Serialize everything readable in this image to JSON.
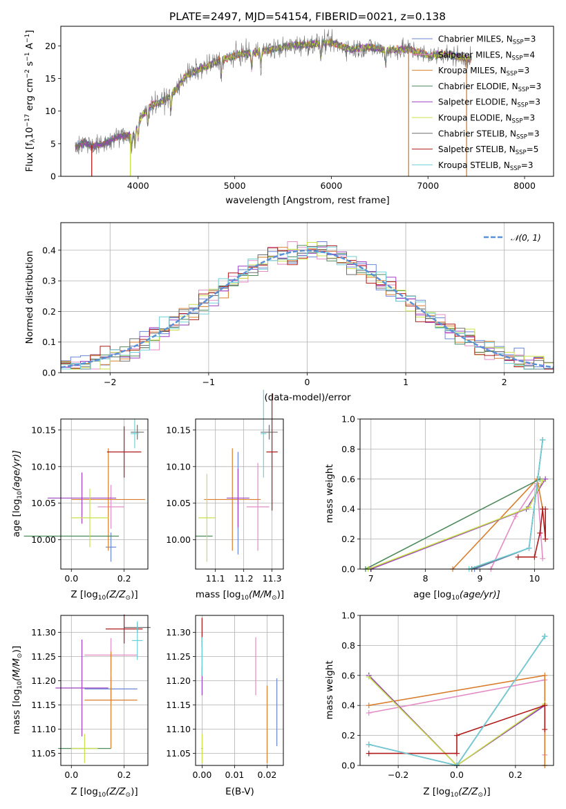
{
  "figure": {
    "title": "PLATE=2497, MJD=54154, FIBERID=0021, z=0.138"
  },
  "models": [
    {
      "label": "Chabrier MILES, N",
      "nssp": "3",
      "color": "#6a85d4"
    },
    {
      "label": "Salpeter MILES, N",
      "nssp": "4",
      "color": "#e38bc5"
    },
    {
      "label": "Kroupa MILES, N",
      "nssp": "3",
      "color": "#d97d2c"
    },
    {
      "label": "Chabrier ELODIE, N",
      "nssp": "3",
      "color": "#4e8a5c"
    },
    {
      "label": "Salpeter ELODIE, N",
      "nssp": "3",
      "color": "#9a3fc0"
    },
    {
      "label": "Kroupa ELODIE, N",
      "nssp": "3",
      "color": "#c9e04a"
    },
    {
      "label": "Chabrier STELIB, N",
      "nssp": "3",
      "color": "#6e6e6e"
    },
    {
      "label": "Salpeter STELIB, N",
      "nssp": "5",
      "color": "#b01a1a"
    },
    {
      "label": "Kroupa STELIB, N",
      "nssp": "3",
      "color": "#6fcfd6"
    }
  ],
  "chart_data": [
    {
      "type": "line",
      "xlabel": "wavelength [Angstrom, rest frame]",
      "ylabel": "Flux [f",
      "ylabel_rest": "10",
      "ylabel_exp": "−17",
      "ylabel_unit": " erg cm",
      "ylabel_exp2": "−2",
      "ylabel_s": " s",
      "ylabel_exp3": "−1",
      "ylabel_end": " A",
      "ylabel_exp4": "−1",
      "ylabel_close": "]",
      "xlim": [
        3200,
        8300
      ],
      "ylim": [
        0,
        23
      ],
      "xticks": [
        "4000",
        "5000",
        "6000",
        "7000",
        "8000"
      ],
      "xtick_values": [
        4000,
        5000,
        6000,
        7000,
        8000
      ],
      "yticks": [
        "0",
        "5",
        "10",
        "15",
        "20"
      ],
      "ytick_values": [
        0,
        5,
        10,
        15,
        20
      ],
      "legend_position": "right",
      "continuum": {
        "x": [
          3350,
          3450,
          3550,
          3650,
          3750,
          3850,
          3950,
          4050,
          4150,
          4250,
          4350,
          4500,
          4650,
          4800,
          5000,
          5200,
          5400,
          5600,
          5800,
          6000,
          6200,
          6400,
          6600,
          6800,
          7000,
          7200,
          7400
        ],
        "y": [
          4.5,
          5.2,
          4.6,
          5.0,
          5.8,
          6.2,
          6.5,
          9.5,
          11.0,
          11.5,
          12.5,
          15.5,
          16.5,
          17.5,
          18.5,
          19.0,
          19.5,
          20.0,
          20.3,
          20.5,
          19.5,
          19.8,
          19.3,
          19.5,
          18.5,
          18.7,
          18.0
        ]
      },
      "drops": [
        {
          "x": 3520,
          "name": "Salpeter STELIB"
        },
        {
          "x": 3920,
          "name": "Kroupa ELODIE"
        },
        {
          "x": 6800,
          "name": "Kroupa MILES"
        },
        {
          "x": 7400,
          "name": "Kroupa MILES"
        }
      ]
    },
    {
      "type": "step",
      "xlabel": "(data-model)/error",
      "ylabel": "Normed distribution",
      "xlim": [
        -2.5,
        2.5
      ],
      "ylim": [
        0,
        0.49
      ],
      "xticks": [
        "−2",
        "−1",
        "0",
        "1",
        "2"
      ],
      "xtick_values": [
        -2,
        -1,
        0,
        1,
        2
      ],
      "yticks": [
        "0.0",
        "0.1",
        "0.2",
        "0.3",
        "0.4"
      ],
      "ytick_values": [
        0,
        0.1,
        0.2,
        0.3,
        0.4
      ],
      "grid": true,
      "gauss_label": "𝒩(0, 1)",
      "gauss_color": "#5b8fd6",
      "legend_position": "top-right"
    },
    {
      "type": "errorbar",
      "xlabel": "Z [log",
      "xlabel_sub": "10",
      "xlabel_rest": "(Z/Z",
      "xlabel_sun": "⊙",
      "xlabel_end": ")]",
      "ylabel": "age  [log",
      "ylabel_sub": "10",
      "ylabel_rest": "(age/yr)]",
      "xlim": [
        -0.04,
        0.29
      ],
      "ylim": [
        9.96,
        10.165
      ],
      "xticks": [
        "0.0",
        "0.2"
      ],
      "xtick_values": [
        0,
        0.2
      ],
      "yticks": [
        "10.00",
        "10.05",
        "10.10",
        "10.15"
      ],
      "ytick_values": [
        10.0,
        10.05,
        10.1,
        10.15
      ],
      "points": [
        {
          "series": "Chabrier MILES",
          "x": 0.15,
          "y": 9.99,
          "xerr": 0.02,
          "yerr": 0.02
        },
        {
          "series": "Salpeter MILES",
          "x": 0.15,
          "y": 10.045,
          "xerr": 0.05,
          "yerr": 0.03
        },
        {
          "series": "Kroupa MILES",
          "x": 0.14,
          "y": 10.055,
          "xerr": 0.14,
          "yerr": 0.07
        },
        {
          "series": "Chabrier ELODIE",
          "x": 0.0,
          "y": 10.005,
          "xerr": 0.18,
          "yerr": 0.0
        },
        {
          "series": "Salpeter ELODIE",
          "x": 0.04,
          "y": 10.057,
          "xerr": 0.13,
          "yerr": 0.035
        },
        {
          "series": "Kroupa ELODIE",
          "x": 0.07,
          "y": 10.03,
          "xerr": 0.07,
          "yerr": 0.04
        },
        {
          "series": "Chabrier STELIB",
          "x": 0.25,
          "y": 10.147,
          "xerr": 0.025,
          "yerr": 0.01
        },
        {
          "series": "Salpeter STELIB",
          "x": 0.2,
          "y": 10.12,
          "xerr": 0.065,
          "yerr": 0.035
        },
        {
          "series": "Kroupa STELIB",
          "x": 0.24,
          "y": 10.145,
          "xerr": 0.015,
          "yerr": 0.02
        }
      ]
    },
    {
      "type": "errorbar",
      "xlabel": "mass [log",
      "xlabel_sub": "10",
      "xlabel_rest": "(M/M",
      "xlabel_sun": "⊙",
      "xlabel_end": ")]",
      "xlim": [
        11.03,
        11.34
      ],
      "ylim": [
        9.96,
        10.165
      ],
      "xticks": [
        "11.1",
        "11.2",
        "11.3"
      ],
      "xtick_values": [
        11.1,
        11.2,
        11.3
      ],
      "yticks": [
        "10.00",
        "10.05",
        "10.10",
        "10.15"
      ],
      "ytick_values": [
        10.0,
        10.05,
        10.1,
        10.15
      ],
      "points": [
        {
          "series": "Chabrier MILES",
          "x": 11.18,
          "y": 10.05,
          "xerr": 0.0,
          "yerr": 0.07
        },
        {
          "series": "Salpeter MILES",
          "x": 11.25,
          "y": 10.045,
          "xerr": 0.04,
          "yerr": 0.06
        },
        {
          "series": "Kroupa MILES",
          "x": 11.16,
          "y": 10.055,
          "xerr": 0.1,
          "yerr": 0.07
        },
        {
          "series": "Chabrier ELODIE",
          "x": 11.06,
          "y": 10.005,
          "xerr": 0.03,
          "yerr": 0.0
        },
        {
          "series": "Salpeter ELODIE",
          "x": 11.18,
          "y": 10.057,
          "xerr": 0.04,
          "yerr": 0.04
        },
        {
          "series": "Kroupa ELODIE",
          "x": 11.07,
          "y": 10.03,
          "xerr": 0.03,
          "yerr": 0.06
        },
        {
          "series": "Chabrier STELIB",
          "x": 11.29,
          "y": 10.147,
          "xerr": 0.03,
          "yerr": 0.01
        },
        {
          "series": "Salpeter STELIB",
          "x": 11.3,
          "y": 10.12,
          "xerr": 0.02,
          "yerr": 0.08
        },
        {
          "series": "Kroupa STELIB",
          "x": 11.27,
          "y": 10.145,
          "xerr": 0.01,
          "yerr": 0.06
        }
      ]
    },
    {
      "type": "line",
      "xlabel": "age  [log",
      "xlabel_sub": "10",
      "xlabel_rest": "(age/yr)]",
      "ylabel": "mass weight",
      "xlim": [
        6.8,
        10.35
      ],
      "ylim": [
        0,
        1.0
      ],
      "xticks": [
        "7",
        "8",
        "9",
        "10"
      ],
      "xtick_values": [
        7,
        8,
        9,
        10
      ],
      "yticks": [
        "0.0",
        "0.2",
        "0.4",
        "0.6",
        "0.8",
        "1.0"
      ],
      "ytick_values": [
        0,
        0.2,
        0.4,
        0.6,
        0.8,
        1.0
      ],
      "grid": true,
      "series": [
        {
          "name": "Chabrier MILES",
          "x": [
            8.9,
            9.9,
            10.15
          ],
          "y": [
            0.0,
            0.14,
            0.86
          ]
        },
        {
          "name": "Salpeter MILES",
          "x": [
            9.2,
            9.65,
            10.05,
            10.15
          ],
          "y": [
            0.0,
            0.35,
            0.57,
            0.07
          ]
        },
        {
          "name": "Kroupa MILES",
          "x": [
            8.5,
            10.05,
            10.15
          ],
          "y": [
            0.0,
            0.6,
            0.4
          ]
        },
        {
          "name": "Chabrier ELODIE",
          "x": [
            6.9,
            10.1
          ],
          "y": [
            0.0,
            0.6
          ]
        },
        {
          "name": "Salpeter ELODIE",
          "x": [
            7.0,
            9.85,
            10.2
          ],
          "y": [
            0.0,
            0.4,
            0.6
          ]
        },
        {
          "name": "Kroupa ELODIE",
          "x": [
            6.95,
            9.9,
            10.15
          ],
          "y": [
            0.0,
            0.41,
            0.59
          ]
        },
        {
          "name": "Chabrier STELIB",
          "x": [
            8.85,
            9.9,
            10.15
          ],
          "y": [
            0.0,
            0.14,
            0.86
          ]
        },
        {
          "name": "Salpeter STELIB",
          "x": [
            9.7,
            10.0,
            10.1,
            10.15,
            10.2,
            10.2
          ],
          "y": [
            0.08,
            0.08,
            0.24,
            0.4,
            0.2,
            0.4
          ]
        },
        {
          "name": "Kroupa STELIB",
          "x": [
            8.8,
            9.9,
            10.15
          ],
          "y": [
            0.0,
            0.14,
            0.86
          ]
        }
      ]
    },
    {
      "type": "errorbar",
      "xlabel": "Z [log",
      "xlabel_sub": "10",
      "xlabel_rest": "(Z/Z",
      "xlabel_sun": "⊙",
      "xlabel_end": ")]",
      "ylabel": "mass [log",
      "ylabel_sub": "10",
      "ylabel_rest": "(M/M",
      "ylabel_sun": "⊙",
      "ylabel_end": ")]",
      "xlim": [
        -0.04,
        0.29
      ],
      "ylim": [
        11.025,
        11.335
      ],
      "xticks": [
        "0.0",
        "0.2"
      ],
      "xtick_values": [
        0,
        0.2
      ],
      "yticks": [
        "11.05",
        "11.10",
        "11.15",
        "11.20",
        "11.25",
        "11.30"
      ],
      "ytick_values": [
        11.05,
        11.1,
        11.15,
        11.2,
        11.25,
        11.3
      ],
      "points": [
        {
          "series": "Chabrier MILES",
          "x": 0.15,
          "y": 11.183,
          "xerr": 0.1,
          "yerr": 0.025
        },
        {
          "series": "Salpeter MILES",
          "x": 0.15,
          "y": 11.253,
          "xerr": 0.1,
          "yerr": 0.035
        },
        {
          "series": "Kroupa MILES",
          "x": 0.15,
          "y": 11.16,
          "xerr": 0.1,
          "yerr": 0.1
        },
        {
          "series": "Chabrier ELODIE",
          "x": 0.05,
          "y": 11.06,
          "xerr": 0.1,
          "yerr": 0.0
        },
        {
          "series": "Salpeter ELODIE",
          "x": 0.04,
          "y": 11.185,
          "xerr": 0.1,
          "yerr": 0.1
        },
        {
          "series": "Kroupa ELODIE",
          "x": 0.05,
          "y": 11.06,
          "xerr": 0.05,
          "yerr": 0.03
        },
        {
          "series": "Chabrier STELIB",
          "x": 0.25,
          "y": 11.31,
          "xerr": 0.05,
          "yerr": 0.01
        },
        {
          "series": "Salpeter STELIB",
          "x": 0.2,
          "y": 11.307,
          "xerr": 0.07,
          "yerr": 0.03
        },
        {
          "series": "Kroupa STELIB",
          "x": 0.25,
          "y": 11.283,
          "xerr": 0.02,
          "yerr": 0.04
        }
      ]
    },
    {
      "type": "errorbar",
      "xlabel": "E(B-V)",
      "xlim": [
        -0.002,
        0.025
      ],
      "ylim": [
        11.025,
        11.335
      ],
      "xticks": [
        "0.00",
        "0.01",
        "0.02"
      ],
      "xtick_values": [
        0,
        0.01,
        0.02
      ],
      "yticks": [
        "11.05",
        "11.10",
        "11.15",
        "11.20",
        "11.25",
        "11.30"
      ],
      "ytick_values": [
        11.05,
        11.1,
        11.15,
        11.2,
        11.25,
        11.3
      ],
      "points": [
        {
          "series": "Chabrier MILES",
          "x": 0.023,
          "y": 11.135,
          "xerr": 0.0,
          "yerr": 0.07
        },
        {
          "series": "Salpeter MILES",
          "x": 0.0165,
          "y": 11.23,
          "xerr": 0.0,
          "yerr": 0.06
        },
        {
          "series": "Kroupa MILES",
          "x": 0.02,
          "y": 11.11,
          "xerr": 0.0,
          "yerr": 0.08
        },
        {
          "series": "Chabrier ELODIE",
          "x": 0.0,
          "y": 11.06,
          "xerr": 0.0,
          "yerr": 0.0
        },
        {
          "series": "Salpeter ELODIE",
          "x": 0.0,
          "y": 11.2,
          "xerr": 0.0,
          "yerr": 0.03
        },
        {
          "series": "Kroupa ELODIE",
          "x": 0.0,
          "y": 11.06,
          "xerr": 0.0,
          "yerr": 0.03
        },
        {
          "series": "Chabrier STELIB",
          "x": 0.0,
          "y": 11.27,
          "xerr": 0.0,
          "yerr": 0.06
        },
        {
          "series": "Salpeter STELIB",
          "x": 0.0,
          "y": 11.3,
          "xerr": 0.0,
          "yerr": 0.03
        },
        {
          "series": "Kroupa STELIB",
          "x": 0.0,
          "y": 11.25,
          "xerr": 0.0,
          "yerr": 0.04
        }
      ]
    },
    {
      "type": "line",
      "xlabel": "Z [log",
      "xlabel_sub": "10",
      "xlabel_rest": "(Z/Z",
      "xlabel_sun": "⊙",
      "xlabel_end": ")]",
      "ylabel": "mass weight",
      "xlim": [
        -0.33,
        0.33
      ],
      "ylim": [
        0,
        1.0
      ],
      "xticks": [
        "−0.2",
        "0.0",
        "0.2"
      ],
      "xtick_values": [
        -0.2,
        0,
        0.2
      ],
      "yticks": [
        "0.0",
        "0.2",
        "0.4",
        "0.6",
        "0.8",
        "1.0"
      ],
      "ytick_values": [
        0,
        0.2,
        0.4,
        0.6,
        0.8,
        1.0
      ],
      "grid": true,
      "series": [
        {
          "name": "Chabrier MILES",
          "x": [
            -0.3,
            0.0,
            0.3
          ],
          "y": [
            0.14,
            0.0,
            0.86
          ]
        },
        {
          "name": "Salpeter MILES",
          "x": [
            -0.3,
            0.3,
            0.3
          ],
          "y": [
            0.35,
            0.57,
            0.07
          ]
        },
        {
          "name": "Kroupa MILES",
          "x": [
            -0.3,
            0.3,
            0.3
          ],
          "y": [
            0.4,
            0.6,
            0.0
          ]
        },
        {
          "name": "Chabrier ELODIE",
          "x": [
            -0.3,
            0.0,
            0.3
          ],
          "y": [
            0.6,
            0.0,
            0.4
          ]
        },
        {
          "name": "Salpeter ELODIE",
          "x": [
            -0.3,
            0.0,
            0.3
          ],
          "y": [
            0.6,
            0.0,
            0.4
          ]
        },
        {
          "name": "Kroupa ELODIE",
          "x": [
            -0.3,
            0.0,
            0.3
          ],
          "y": [
            0.59,
            0.0,
            0.41
          ]
        },
        {
          "name": "Chabrier STELIB",
          "x": [
            -0.3,
            0.0,
            0.3
          ],
          "y": [
            0.14,
            0.0,
            0.86
          ]
        },
        {
          "name": "Salpeter STELIB",
          "x": [
            -0.3,
            0.0,
            0.0,
            0.3,
            0.3
          ],
          "y": [
            0.08,
            0.08,
            0.2,
            0.4,
            0.24
          ]
        },
        {
          "name": "Kroupa STELIB",
          "x": [
            -0.3,
            0.0,
            0.3
          ],
          "y": [
            0.14,
            0.0,
            0.86
          ]
        }
      ]
    }
  ]
}
